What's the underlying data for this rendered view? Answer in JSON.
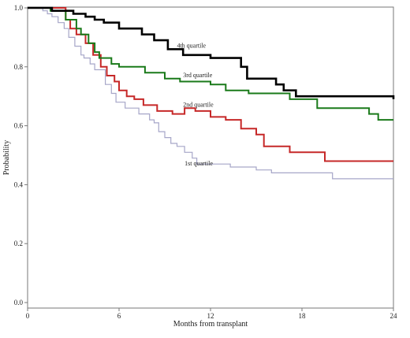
{
  "chart_data": {
    "type": "line",
    "step": true,
    "xlabel": "Months from transplant",
    "ylabel": "Probability",
    "xlim": [
      0,
      24
    ],
    "ylim": [
      0,
      1.0
    ],
    "x_ticks": [
      0,
      6,
      12,
      18,
      24
    ],
    "y_ticks": [
      0.0,
      0.2,
      0.4,
      0.6,
      0.8,
      1.0
    ],
    "x_tick_labels": [
      "0",
      "6",
      "12",
      "18",
      "24"
    ],
    "y_tick_labels": [
      "0.0",
      "0.2",
      "0.4",
      "0.6",
      "0.8",
      "1.0"
    ],
    "grid": false,
    "legend": "none (inline curve labels)",
    "series": [
      {
        "name": "4th quartile",
        "color": "#000000",
        "points": [
          [
            0,
            1.0
          ],
          [
            1.6,
            0.99
          ],
          [
            3.0,
            0.98
          ],
          [
            3.8,
            0.97
          ],
          [
            4.4,
            0.96
          ],
          [
            5.0,
            0.95
          ],
          [
            6.0,
            0.93
          ],
          [
            7.5,
            0.91
          ],
          [
            8.3,
            0.89
          ],
          [
            9.2,
            0.86
          ],
          [
            10.2,
            0.84
          ],
          [
            12.0,
            0.83
          ],
          [
            14.0,
            0.8
          ],
          [
            14.4,
            0.76
          ],
          [
            16.3,
            0.74
          ],
          [
            16.8,
            0.72
          ],
          [
            17.6,
            0.7
          ],
          [
            24,
            0.69
          ]
        ]
      },
      {
        "name": "3rd quartile",
        "color": "#1a7a1a",
        "points": [
          [
            0,
            1.0
          ],
          [
            1.5,
            0.99
          ],
          [
            2.5,
            0.96
          ],
          [
            3.2,
            0.93
          ],
          [
            3.5,
            0.91
          ],
          [
            4.0,
            0.88
          ],
          [
            4.4,
            0.85
          ],
          [
            4.7,
            0.83
          ],
          [
            5.5,
            0.81
          ],
          [
            6.0,
            0.8
          ],
          [
            7.7,
            0.78
          ],
          [
            9.0,
            0.76
          ],
          [
            10.0,
            0.75
          ],
          [
            12.0,
            0.74
          ],
          [
            13.0,
            0.72
          ],
          [
            14.5,
            0.71
          ],
          [
            17.2,
            0.69
          ],
          [
            19.0,
            0.66
          ],
          [
            22.4,
            0.64
          ],
          [
            23.0,
            0.62
          ],
          [
            24,
            0.62
          ]
        ]
      },
      {
        "name": "2nd quartile",
        "color": "#c62828",
        "points": [
          [
            0,
            1.0
          ],
          [
            2.5,
            0.96
          ],
          [
            2.8,
            0.93
          ],
          [
            3.2,
            0.91
          ],
          [
            3.8,
            0.88
          ],
          [
            4.3,
            0.84
          ],
          [
            4.8,
            0.8
          ],
          [
            5.2,
            0.77
          ],
          [
            5.7,
            0.75
          ],
          [
            6.0,
            0.72
          ],
          [
            6.5,
            0.7
          ],
          [
            7.0,
            0.69
          ],
          [
            7.6,
            0.67
          ],
          [
            8.5,
            0.65
          ],
          [
            9.5,
            0.64
          ],
          [
            10.3,
            0.66
          ],
          [
            11.0,
            0.65
          ],
          [
            12.0,
            0.63
          ],
          [
            13.0,
            0.62
          ],
          [
            14.0,
            0.59
          ],
          [
            15.0,
            0.57
          ],
          [
            15.5,
            0.53
          ],
          [
            16.3,
            0.53
          ],
          [
            17.2,
            0.51
          ],
          [
            19.5,
            0.48
          ],
          [
            24,
            0.48
          ]
        ]
      },
      {
        "name": "1st quartile",
        "color": "#a6a6c8",
        "points": [
          [
            0,
            1.0
          ],
          [
            1.0,
            0.99
          ],
          [
            1.3,
            0.98
          ],
          [
            1.6,
            0.97
          ],
          [
            2.0,
            0.95
          ],
          [
            2.4,
            0.93
          ],
          [
            2.7,
            0.9
          ],
          [
            3.1,
            0.87
          ],
          [
            3.5,
            0.84
          ],
          [
            3.7,
            0.83
          ],
          [
            4.1,
            0.81
          ],
          [
            4.4,
            0.79
          ],
          [
            5.1,
            0.74
          ],
          [
            5.5,
            0.71
          ],
          [
            5.8,
            0.68
          ],
          [
            6.4,
            0.66
          ],
          [
            7.3,
            0.64
          ],
          [
            8.0,
            0.62
          ],
          [
            8.3,
            0.61
          ],
          [
            8.6,
            0.58
          ],
          [
            9.0,
            0.56
          ],
          [
            9.4,
            0.54
          ],
          [
            9.8,
            0.53
          ],
          [
            10.3,
            0.51
          ],
          [
            10.8,
            0.49
          ],
          [
            11.1,
            0.47
          ],
          [
            13.0,
            0.47
          ],
          [
            13.3,
            0.46
          ],
          [
            15.0,
            0.45
          ],
          [
            16.0,
            0.44
          ],
          [
            20.0,
            0.42
          ],
          [
            24,
            0.42
          ]
        ]
      }
    ],
    "annotations": [
      {
        "text": "4th quartile",
        "x": 9.8,
        "y": 0.865
      },
      {
        "text": "3rd quartile",
        "x": 10.2,
        "y": 0.765
      },
      {
        "text": "2nd quartile",
        "x": 10.2,
        "y": 0.665
      },
      {
        "text": "1st quartile",
        "x": 10.3,
        "y": 0.465
      }
    ]
  }
}
